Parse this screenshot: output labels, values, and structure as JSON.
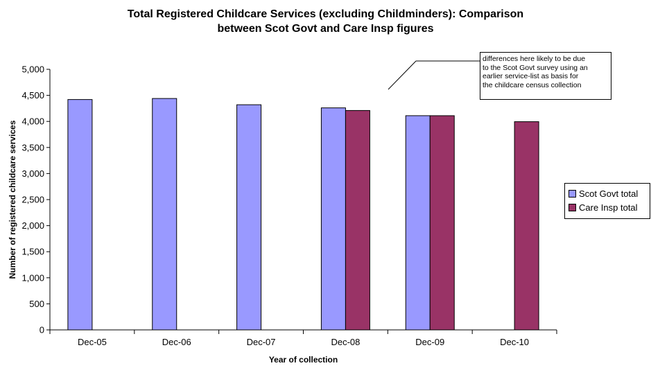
{
  "chart_data": {
    "type": "bar",
    "title_lines": [
      "Total Registered Childcare Services (excluding Childminders): Comparison",
      "between Scot Govt and Care Insp figures"
    ],
    "xlabel": "Year of collection",
    "ylabel": "Number of registered childcare services",
    "categories": [
      "Dec-05",
      "Dec-06",
      "Dec-07",
      "Dec-08",
      "Dec-09",
      "Dec-10"
    ],
    "series": [
      {
        "name": "Scot Govt total",
        "color": "#9999ff",
        "values": [
          4420,
          4440,
          4320,
          4260,
          4110,
          null
        ]
      },
      {
        "name": "Care Insp total",
        "color": "#993366",
        "values": [
          null,
          null,
          null,
          4210,
          4110,
          3995
        ]
      }
    ],
    "ylim": [
      0,
      5000
    ],
    "yticks": [
      0,
      500,
      1000,
      1500,
      2000,
      2500,
      3000,
      3500,
      4000,
      4500,
      5000
    ],
    "ytick_labels": [
      "0",
      "500",
      "1,000",
      "1,500",
      "2,000",
      "2,500",
      "3,000",
      "3,500",
      "4,000",
      "4,500",
      "5,000"
    ],
    "grid": false,
    "legend_position": "right",
    "annotation": {
      "lines": [
        "differences here likely to be due",
        "to the Scot Govt survey using an",
        "earlier service-list as basis for",
        "the childcare census collection"
      ]
    }
  }
}
